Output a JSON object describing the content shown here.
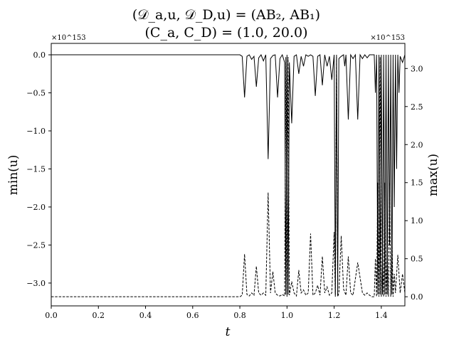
{
  "chart_data": {
    "type": "line",
    "title_line1": "(𝒟_a,u, 𝒟_D,u) = (AB₂, AB₁)",
    "title_line2": "(C_a, C_D) = (1.0, 20.0)",
    "xlabel": "t",
    "ylabel_left": "min(u)",
    "ylabel_right": "max(u)",
    "xlim": [
      0.0,
      1.5
    ],
    "ylim_left": [
      -3.3,
      0.15
    ],
    "ylim_right": [
      -0.12,
      3.33
    ],
    "multiplier_left": "×10^153",
    "multiplier_right": "×10^153",
    "x_ticks": [
      0.0,
      0.2,
      0.4,
      0.6,
      0.8,
      1.0,
      1.2,
      1.4
    ],
    "x_tick_labels": [
      "0.0",
      "0.2",
      "0.4",
      "0.6",
      "0.8",
      "1.0",
      "1.2",
      "1.4"
    ],
    "y_ticks_left": [
      0.0,
      -0.5,
      -1.0,
      -1.5,
      -2.0,
      -2.5,
      -3.0
    ],
    "y_tick_labels_left": [
      "0.0",
      "−0.5",
      "−1.0",
      "−1.5",
      "−2.0",
      "−2.5",
      "−3.0"
    ],
    "y_ticks_right": [
      0.0,
      0.5,
      1.0,
      1.5,
      2.0,
      2.5,
      3.0
    ],
    "y_tick_labels_right": [
      "0.0",
      "0.5",
      "1.0",
      "1.5",
      "2.0",
      "2.5",
      "3.0"
    ],
    "grid": false,
    "series": [
      {
        "axis": "left",
        "style": "solid",
        "color": "#000000",
        "points": [
          [
            0.0,
            0.0
          ],
          [
            0.8,
            0.0
          ],
          [
            0.81,
            -0.02
          ],
          [
            0.82,
            -0.56
          ],
          [
            0.83,
            -0.02
          ],
          [
            0.84,
            0.0
          ],
          [
            0.85,
            -0.06
          ],
          [
            0.86,
            -0.02
          ],
          [
            0.87,
            -0.42
          ],
          [
            0.88,
            -0.04
          ],
          [
            0.89,
            0.0
          ],
          [
            0.9,
            -0.08
          ],
          [
            0.91,
            0.0
          ],
          [
            0.92,
            -1.37
          ],
          [
            0.93,
            -0.05
          ],
          [
            0.94,
            -0.01
          ],
          [
            0.95,
            0.0
          ],
          [
            0.96,
            -0.56
          ],
          [
            0.97,
            -0.05
          ],
          [
            0.98,
            0.0
          ],
          [
            0.99,
            -0.1
          ],
          [
            0.995,
            -3.15
          ],
          [
            1.0,
            0.0
          ],
          [
            1.005,
            -3.15
          ],
          [
            1.01,
            -0.1
          ],
          [
            1.02,
            -0.9
          ],
          [
            1.03,
            -0.02
          ],
          [
            1.04,
            0.0
          ],
          [
            1.05,
            -0.25
          ],
          [
            1.06,
            -0.02
          ],
          [
            1.07,
            -0.15
          ],
          [
            1.08,
            0.0
          ],
          [
            1.09,
            -0.02
          ],
          [
            1.1,
            0.0
          ],
          [
            1.11,
            -0.02
          ],
          [
            1.12,
            -0.54
          ],
          [
            1.13,
            -0.02
          ],
          [
            1.14,
            0.0
          ],
          [
            1.15,
            -0.4
          ],
          [
            1.16,
            0.0
          ],
          [
            1.17,
            -0.15
          ],
          [
            1.18,
            -0.02
          ],
          [
            1.19,
            -0.33
          ],
          [
            1.2,
            0.0
          ],
          [
            1.205,
            -3.15
          ],
          [
            1.21,
            0.0
          ],
          [
            1.215,
            -3.15
          ],
          [
            1.22,
            -0.05
          ],
          [
            1.23,
            -0.02
          ],
          [
            1.24,
            0.0
          ],
          [
            1.245,
            -0.15
          ],
          [
            1.25,
            0.0
          ],
          [
            1.26,
            -0.85
          ],
          [
            1.27,
            0.0
          ],
          [
            1.28,
            -0.05
          ],
          [
            1.29,
            0.0
          ],
          [
            1.3,
            -0.85
          ],
          [
            1.31,
            0.0
          ],
          [
            1.32,
            -0.05
          ],
          [
            1.33,
            0.0
          ],
          [
            1.34,
            -0.04
          ],
          [
            1.35,
            0.0
          ],
          [
            1.36,
            0.0
          ],
          [
            1.37,
            0.0
          ],
          [
            1.375,
            -0.5
          ],
          [
            1.38,
            0.0
          ],
          [
            1.385,
            -3.15
          ],
          [
            1.39,
            0.0
          ],
          [
            1.395,
            -3.15
          ],
          [
            1.4,
            0.0
          ],
          [
            1.405,
            -3.15
          ],
          [
            1.41,
            0.0
          ],
          [
            1.415,
            -3.15
          ],
          [
            1.42,
            0.0
          ],
          [
            1.425,
            -3.15
          ],
          [
            1.43,
            0.0
          ],
          [
            1.435,
            -2.5
          ],
          [
            1.44,
            0.0
          ],
          [
            1.445,
            -3.15
          ],
          [
            1.45,
            0.0
          ],
          [
            1.455,
            -2.0
          ],
          [
            1.46,
            0.0
          ],
          [
            1.465,
            -1.5
          ],
          [
            1.47,
            0.0
          ],
          [
            1.475,
            -0.5
          ],
          [
            1.48,
            -0.02
          ],
          [
            1.49,
            -0.1
          ],
          [
            1.5,
            0.0
          ]
        ]
      },
      {
        "axis": "right",
        "style": "dashed",
        "color": "#000000",
        "points": [
          [
            0.0,
            0.0
          ],
          [
            0.8,
            0.0
          ],
          [
            0.81,
            0.02
          ],
          [
            0.82,
            0.56
          ],
          [
            0.83,
            0.03
          ],
          [
            0.84,
            0.01
          ],
          [
            0.85,
            0.05
          ],
          [
            0.86,
            0.02
          ],
          [
            0.87,
            0.4
          ],
          [
            0.88,
            0.05
          ],
          [
            0.89,
            0.02
          ],
          [
            0.9,
            0.05
          ],
          [
            0.91,
            0.02
          ],
          [
            0.92,
            1.37
          ],
          [
            0.93,
            0.05
          ],
          [
            0.94,
            0.33
          ],
          [
            0.95,
            0.05
          ],
          [
            0.96,
            0.02
          ],
          [
            0.97,
            0.01
          ],
          [
            0.98,
            0.03
          ],
          [
            0.99,
            0.01
          ],
          [
            0.995,
            3.15
          ],
          [
            1.0,
            0.0
          ],
          [
            1.005,
            3.15
          ],
          [
            1.01,
            0.02
          ],
          [
            1.02,
            0.2
          ],
          [
            1.03,
            0.05
          ],
          [
            1.04,
            0.01
          ],
          [
            1.05,
            0.35
          ],
          [
            1.06,
            0.05
          ],
          [
            1.07,
            0.09
          ],
          [
            1.08,
            0.02
          ],
          [
            1.09,
            0.05
          ],
          [
            1.1,
            0.83
          ],
          [
            1.11,
            0.02
          ],
          [
            1.12,
            0.05
          ],
          [
            1.13,
            0.15
          ],
          [
            1.14,
            0.02
          ],
          [
            1.15,
            0.53
          ],
          [
            1.16,
            0.05
          ],
          [
            1.17,
            0.13
          ],
          [
            1.18,
            0.02
          ],
          [
            1.19,
            0.05
          ],
          [
            1.2,
            0.85
          ],
          [
            1.205,
            0.0
          ],
          [
            1.21,
            3.15
          ],
          [
            1.215,
            0.0
          ],
          [
            1.22,
            0.05
          ],
          [
            1.23,
            0.8
          ],
          [
            1.24,
            0.1
          ],
          [
            1.25,
            0.02
          ],
          [
            1.26,
            0.53
          ],
          [
            1.27,
            0.05
          ],
          [
            1.28,
            0.02
          ],
          [
            1.3,
            0.45
          ],
          [
            1.32,
            0.05
          ],
          [
            1.33,
            0.02
          ],
          [
            1.34,
            0.05
          ],
          [
            1.35,
            0.02
          ],
          [
            1.36,
            0.0
          ],
          [
            1.37,
            0.0
          ],
          [
            1.375,
            0.5
          ],
          [
            1.38,
            0.0
          ],
          [
            1.385,
            1.5
          ],
          [
            1.39,
            0.0
          ],
          [
            1.395,
            3.15
          ],
          [
            1.4,
            0.0
          ],
          [
            1.405,
            0.5
          ],
          [
            1.41,
            0.0
          ],
          [
            1.415,
            1.5
          ],
          [
            1.42,
            0.0
          ],
          [
            1.425,
            0.6
          ],
          [
            1.43,
            0.0
          ],
          [
            1.435,
            1.5
          ],
          [
            1.44,
            0.0
          ],
          [
            1.445,
            0.8
          ],
          [
            1.45,
            0.0
          ],
          [
            1.455,
            0.3
          ],
          [
            1.46,
            0.05
          ],
          [
            1.47,
            0.55
          ],
          [
            1.48,
            0.05
          ],
          [
            1.49,
            0.3
          ],
          [
            1.5,
            0.05
          ]
        ]
      }
    ]
  }
}
